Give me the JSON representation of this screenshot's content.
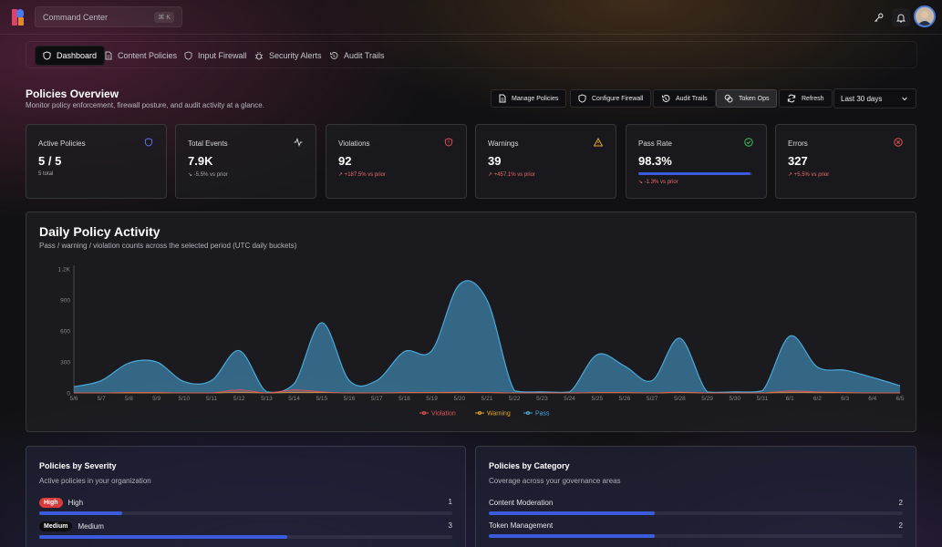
{
  "topbar": {
    "command_placeholder": "Command Center",
    "shortcut": "⌘ K",
    "icons": [
      "key-icon",
      "bell-icon"
    ],
    "avatar": "user-avatar"
  },
  "nav": {
    "items": [
      {
        "label": "Dashboard",
        "icon": "shield-icon",
        "active": true
      },
      {
        "label": "Content Policies",
        "icon": "document-icon"
      },
      {
        "label": "Input Firewall",
        "icon": "shield-icon"
      },
      {
        "label": "Security Alerts",
        "icon": "bug-icon"
      },
      {
        "label": "Audit Trails",
        "icon": "history-icon"
      }
    ]
  },
  "header": {
    "title": "Policies Overview",
    "subtitle": "Monitor policy enforcement, firewall posture, and audit activity at a glance."
  },
  "actions": {
    "manage": "Manage Policies",
    "firewall": "Configure Firewall",
    "audit": "Audit Trails",
    "token": "Token Ops",
    "refresh": "Refresh",
    "range": "Last 30 days"
  },
  "stats": [
    {
      "label": "Active Policies",
      "value": "5 / 5",
      "sub": "5 total",
      "icon": "shield-icon",
      "color": "#5a7cf0"
    },
    {
      "label": "Total Events",
      "value": "7.9K",
      "sub": "-5.5% vs prior",
      "icon": "activity-icon",
      "color": "#d0d0d8"
    },
    {
      "label": "Violations",
      "value": "92",
      "sub": "+187.5% vs prior",
      "icon": "shield-alert-icon",
      "color": "#e05555"
    },
    {
      "label": "Warnings",
      "value": "39",
      "sub": "+457.1% vs prior",
      "icon": "warning-icon",
      "color": "#e0a62a"
    },
    {
      "label": "Pass Rate",
      "value": "98.3%",
      "sub": "-1.3% vs prior",
      "icon": "check-circle-icon",
      "color": "#3fbf5a",
      "progress": 0.983
    },
    {
      "label": "Errors",
      "value": "327",
      "sub": "+5.5% vs prior",
      "icon": "x-circle-icon",
      "color": "#e05555"
    }
  ],
  "chart": {
    "title": "Daily Policy Activity",
    "subtitle": "Pass / warning / violation counts across the selected period (UTC daily buckets)"
  },
  "chart_data": {
    "type": "area",
    "x": [
      "5/6",
      "5/7",
      "5/8",
      "5/9",
      "5/10",
      "5/11",
      "5/12",
      "5/13",
      "5/14",
      "5/15",
      "5/16",
      "5/17",
      "5/18",
      "5/19",
      "5/20",
      "5/21",
      "5/22",
      "5/23",
      "5/24",
      "5/25",
      "5/26",
      "5/27",
      "5/28",
      "5/29",
      "5/30",
      "5/31",
      "6/1",
      "6/2",
      "6/3",
      "6/4",
      "6/5"
    ],
    "y_ticks": [
      "0",
      "300",
      "600",
      "900",
      "1.2K"
    ],
    "ylim": [
      0,
      1200
    ],
    "series": [
      {
        "name": "Pass",
        "color": "#4aa8d8",
        "values": [
          60,
          120,
          290,
          300,
          110,
          120,
          410,
          10,
          90,
          680,
          120,
          120,
          400,
          410,
          1050,
          900,
          20,
          10,
          10,
          370,
          260,
          120,
          530,
          10,
          10,
          20,
          550,
          250,
          220,
          150,
          70
        ]
      },
      {
        "name": "Warning",
        "color": "#e0a62a",
        "values": [
          0,
          0,
          0,
          0,
          0,
          0,
          5,
          0,
          5,
          5,
          0,
          0,
          2,
          2,
          3,
          3,
          0,
          0,
          0,
          2,
          2,
          0,
          3,
          0,
          0,
          0,
          4,
          2,
          2,
          0,
          0
        ]
      },
      {
        "name": "Violation",
        "color": "#e05555",
        "values": [
          0,
          0,
          5,
          5,
          0,
          0,
          30,
          0,
          30,
          10,
          0,
          0,
          5,
          5,
          8,
          5,
          0,
          0,
          0,
          5,
          5,
          0,
          8,
          0,
          0,
          0,
          20,
          10,
          5,
          0,
          0
        ]
      }
    ],
    "legend": [
      "Violation",
      "Warning",
      "Pass"
    ],
    "legend_position": "bottom",
    "grid": false
  },
  "severity": {
    "title": "Policies by Severity",
    "subtitle": "Active policies in your organization",
    "rows": [
      {
        "pill": "High",
        "label": "High",
        "count": "1",
        "fraction": 0.2,
        "color": "#d93a3a"
      },
      {
        "pill": "Medium",
        "label": "Medium",
        "count": "3",
        "fraction": 0.6,
        "color": "#0d0d10"
      }
    ]
  },
  "category": {
    "title": "Policies by Category",
    "subtitle": "Coverage across your governance areas",
    "rows": [
      {
        "label": "Content Moderation",
        "count": "2",
        "fraction": 0.4
      },
      {
        "label": "Token Management",
        "count": "2",
        "fraction": 0.4
      }
    ]
  }
}
